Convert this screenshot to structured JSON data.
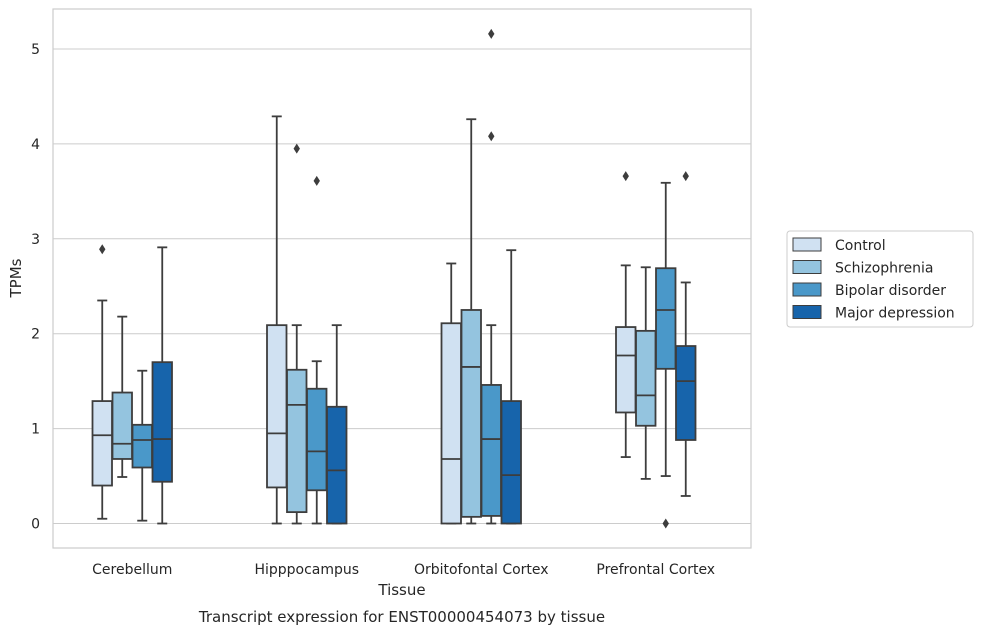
{
  "chart_data": {
    "type": "box",
    "caption": "Transcript expression for ENST00000454073 by tissue",
    "xlabel": "Tissue",
    "ylabel": "TPMs",
    "ylim": [
      -0.25,
      5.42
    ],
    "yticks": [
      0,
      1,
      2,
      3,
      4,
      5
    ],
    "grid": true,
    "legend_position": "right",
    "categories": [
      "Cerebellum",
      "Hipppocampus",
      "Orbitofontal Cortex",
      "Prefrontal Cortex"
    ],
    "series": [
      {
        "name": "Control",
        "color": "#d0e1f2",
        "boxes": [
          {
            "whislo": 0.05,
            "q1": 0.4,
            "med": 0.93,
            "q3": 1.29,
            "whishi": 2.35,
            "fliers": [
              2.89
            ]
          },
          {
            "whislo": 0.0,
            "q1": 0.38,
            "med": 0.95,
            "q3": 2.09,
            "whishi": 4.29,
            "fliers": []
          },
          {
            "whislo": 0.0,
            "q1": 0.0,
            "med": 0.68,
            "q3": 2.11,
            "whishi": 2.74,
            "fliers": []
          },
          {
            "whislo": 0.7,
            "q1": 1.17,
            "med": 1.77,
            "q3": 2.07,
            "whishi": 2.72,
            "fliers": [
              3.66
            ]
          }
        ]
      },
      {
        "name": "Schizophrenia",
        "color": "#94c4df",
        "boxes": [
          {
            "whislo": 0.49,
            "q1": 0.68,
            "med": 0.84,
            "q3": 1.38,
            "whishi": 2.18,
            "fliers": []
          },
          {
            "whislo": 0.0,
            "q1": 0.12,
            "med": 1.25,
            "q3": 1.62,
            "whishi": 2.09,
            "fliers": [
              3.95
            ]
          },
          {
            "whislo": 0.0,
            "q1": 0.07,
            "med": 1.65,
            "q3": 2.25,
            "whishi": 4.26,
            "fliers": []
          },
          {
            "whislo": 0.47,
            "q1": 1.03,
            "med": 1.35,
            "q3": 2.03,
            "whishi": 2.7,
            "fliers": []
          }
        ]
      },
      {
        "name": "Bipolar disorder",
        "color": "#4a98c9",
        "boxes": [
          {
            "whislo": 0.03,
            "q1": 0.59,
            "med": 0.88,
            "q3": 1.04,
            "whishi": 1.61,
            "fliers": []
          },
          {
            "whislo": 0.0,
            "q1": 0.35,
            "med": 0.76,
            "q3": 1.42,
            "whishi": 1.71,
            "fliers": [
              3.61
            ]
          },
          {
            "whislo": 0.0,
            "q1": 0.08,
            "med": 0.89,
            "q3": 1.46,
            "whishi": 2.09,
            "fliers": [
              4.08,
              5.16
            ]
          },
          {
            "whislo": 0.5,
            "q1": 1.63,
            "med": 2.25,
            "q3": 2.69,
            "whishi": 3.59,
            "fliers": [
              0.0
            ]
          }
        ]
      },
      {
        "name": "Major depression",
        "color": "#1764ab",
        "boxes": [
          {
            "whislo": 0.0,
            "q1": 0.44,
            "med": 0.89,
            "q3": 1.7,
            "whishi": 2.91,
            "fliers": []
          },
          {
            "whislo": 0.0,
            "q1": 0.0,
            "med": 0.56,
            "q3": 1.23,
            "whishi": 2.09,
            "fliers": []
          },
          {
            "whislo": 0.0,
            "q1": 0.0,
            "med": 0.51,
            "q3": 1.29,
            "whishi": 2.88,
            "fliers": []
          },
          {
            "whislo": 0.29,
            "q1": 0.88,
            "med": 1.5,
            "q3": 1.87,
            "whishi": 2.54,
            "fliers": [
              3.66
            ]
          }
        ]
      }
    ]
  }
}
